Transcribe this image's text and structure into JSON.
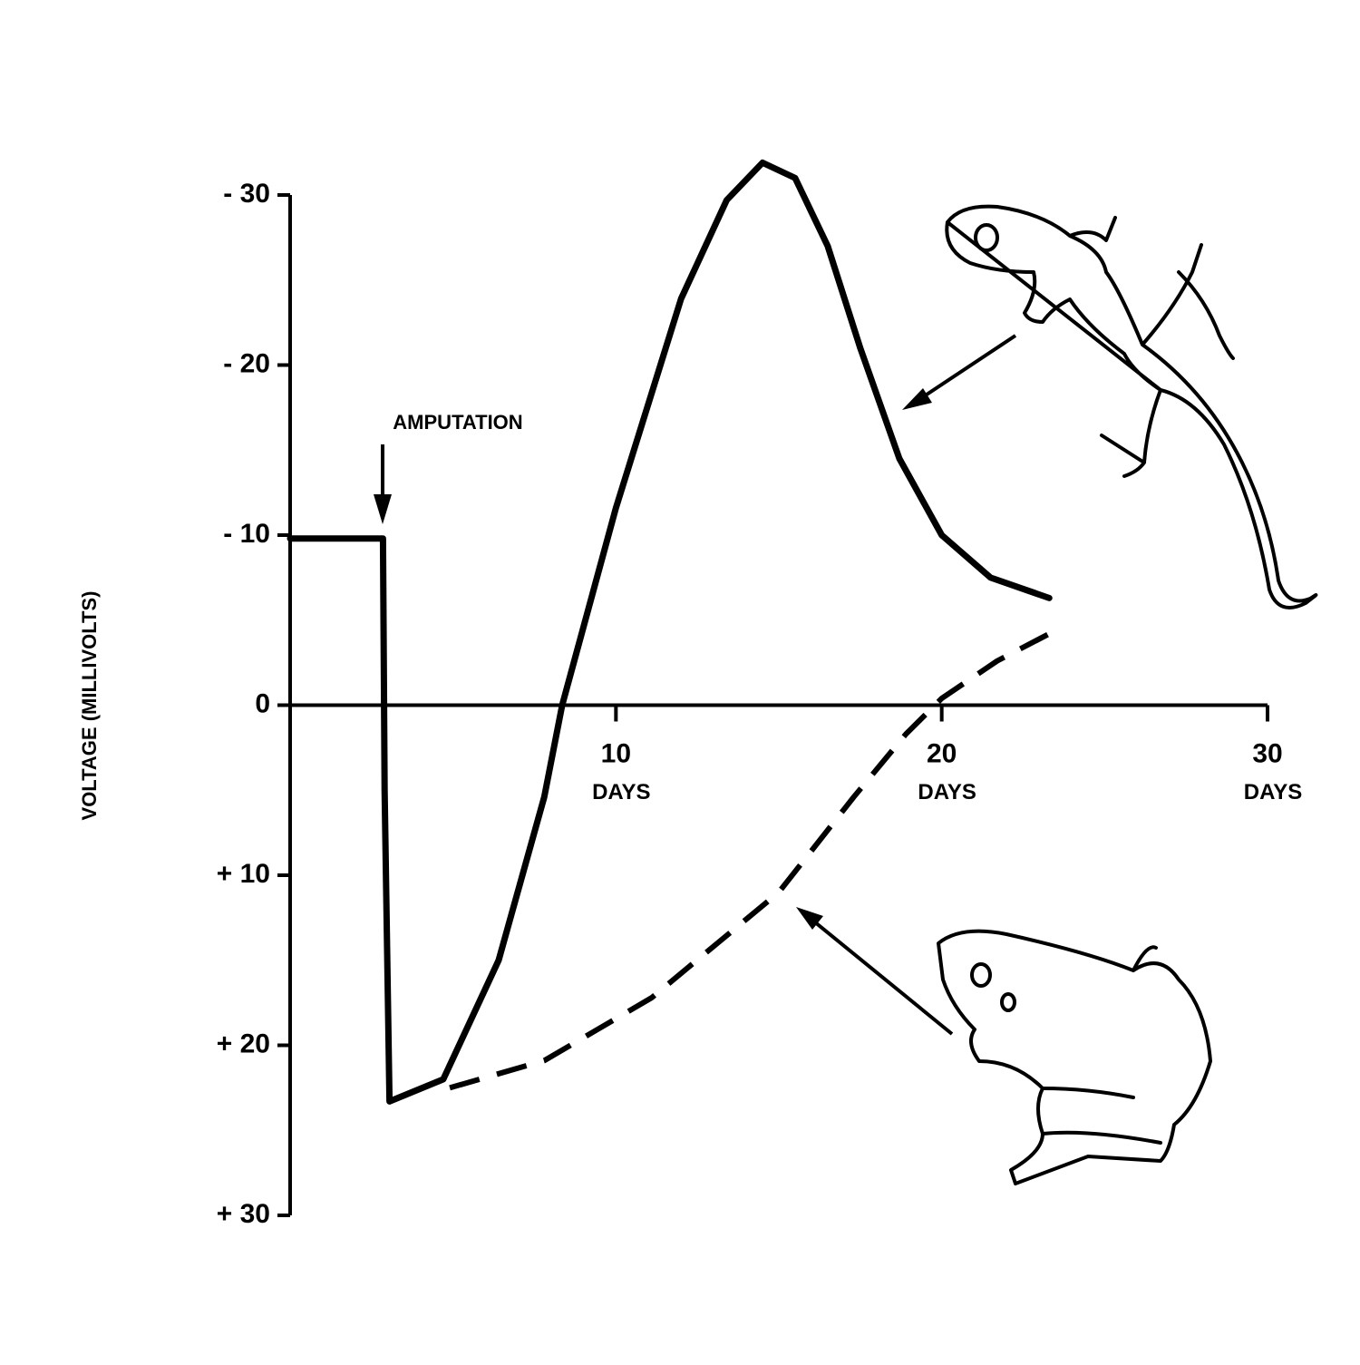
{
  "chart_data": {
    "type": "line",
    "ylabel": "VOLTAGE (MILLIVOLTS)",
    "annotation": "AMPUTATION",
    "xtick_unit": "DAYS",
    "xlim": [
      0,
      30
    ],
    "xticks": [
      10,
      20,
      30
    ],
    "ylim": [
      30,
      -30
    ],
    "yticks": [
      {
        "value": -30,
        "label": "- 30"
      },
      {
        "value": -20,
        "label": "- 20"
      },
      {
        "value": -10,
        "label": "- 10"
      },
      0,
      {
        "value": 10,
        "label": "+ 10"
      },
      {
        "value": 20,
        "label": "+ 20"
      },
      {
        "value": 30,
        "label": "+ 30"
      }
    ],
    "grid": false,
    "series": [
      {
        "color": "#000000",
        "dashed": false,
        "x": [
          0,
          2.85,
          2.9,
          3.05,
          4.7,
          6.4,
          7.8,
          8.35,
          10,
          12,
          13.4,
          14.5,
          15.5,
          16.5,
          17.5,
          18.7,
          20,
          21.5,
          23.3
        ],
        "values": [
          -9.8,
          -9.8,
          5,
          23.3,
          22,
          15,
          5.4,
          0,
          -11.6,
          -23.9,
          -29.7,
          -31.9,
          -31,
          -27,
          -21,
          -14.5,
          -10,
          -7.5,
          -6.3
        ]
      },
      {
        "color": "#000000",
        "dashed": true,
        "x": [
          4.9,
          7.8,
          11.1,
          15,
          17.3,
          18.9,
          20,
          21.7,
          23.3
        ],
        "values": [
          22.5,
          20.9,
          17.2,
          11,
          5.4,
          1.7,
          -0.4,
          -2.6,
          -4.2
        ]
      }
    ]
  }
}
